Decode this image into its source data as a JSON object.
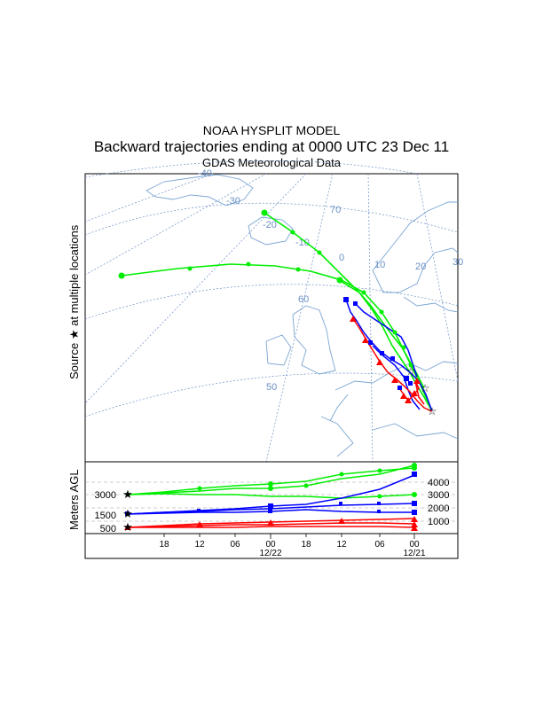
{
  "header": {
    "model": "NOAA HYSPLIT MODEL",
    "subtitle": "Backward trajectories ending at 0000 UTC 23 Dec 11",
    "data_source": "GDAS Meteorological Data"
  },
  "map": {
    "source_label_prefix": "Source",
    "source_label_suffix": "at multiple locations",
    "grid_labels": [
      "-40",
      "-30",
      "-20",
      "-10",
      "0",
      "10",
      "20",
      "30",
      "70",
      "60",
      "50"
    ]
  },
  "height_panel": {
    "axis_label": "Meters AGL",
    "left_ticks": [
      "3000",
      "1500",
      "500"
    ],
    "right_ticks": [
      "4000",
      "3000",
      "2000",
      "1000"
    ],
    "time_ticks": [
      "18",
      "12",
      "06",
      "00",
      "18",
      "12",
      "06",
      "00"
    ],
    "date_labels": [
      "12/22",
      "12/21"
    ]
  },
  "colors": {
    "red": "#ff0000",
    "blue": "#0000ff",
    "green": "#00ee00",
    "coast": "#7aa5d3",
    "grid": "#6b8fc6"
  }
}
